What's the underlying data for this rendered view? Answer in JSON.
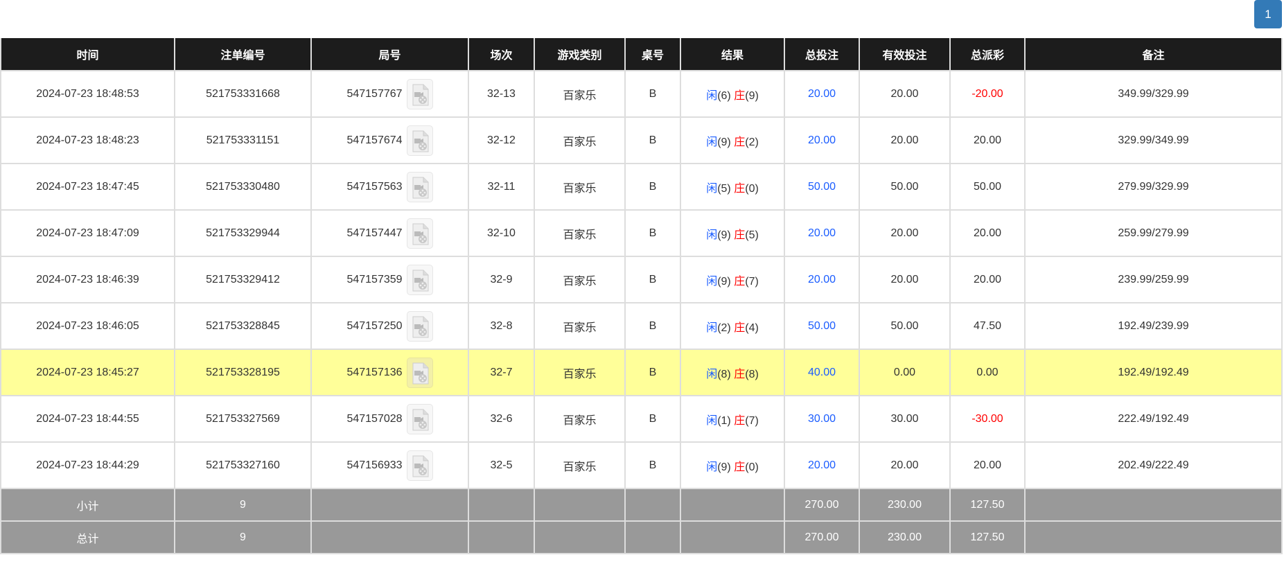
{
  "pagination": {
    "current": "1"
  },
  "columns": [
    "时间",
    "注单编号",
    "局号",
    "场次",
    "游戏类别",
    "桌号",
    "结果",
    "总投注",
    "有效投注",
    "总派彩",
    "备注"
  ],
  "rows": [
    {
      "time": "2024-07-23 18:48:53",
      "bet_no": "521753331668",
      "round": "547157767",
      "session": "32-13",
      "game": "百家乐",
      "table": "B",
      "player_label": "闲",
      "player": "(6)",
      "banker_label": "庄",
      "banker": "(9)",
      "total_bet": "20.00",
      "valid_bet": "20.00",
      "payout": "-20.00",
      "payout_negative": true,
      "note": "349.99/329.99"
    },
    {
      "time": "2024-07-23 18:48:23",
      "bet_no": "521753331151",
      "round": "547157674",
      "session": "32-12",
      "game": "百家乐",
      "table": "B",
      "player_label": "闲",
      "player": "(9)",
      "banker_label": "庄",
      "banker": "(2)",
      "total_bet": "20.00",
      "valid_bet": "20.00",
      "payout": "20.00",
      "payout_negative": false,
      "note": "329.99/349.99"
    },
    {
      "time": "2024-07-23 18:47:45",
      "bet_no": "521753330480",
      "round": "547157563",
      "session": "32-11",
      "game": "百家乐",
      "table": "B",
      "player_label": "闲",
      "player": "(5)",
      "banker_label": "庄",
      "banker": "(0)",
      "total_bet": "50.00",
      "valid_bet": "50.00",
      "payout": "50.00",
      "payout_negative": false,
      "note": "279.99/329.99"
    },
    {
      "time": "2024-07-23 18:47:09",
      "bet_no": "521753329944",
      "round": "547157447",
      "session": "32-10",
      "game": "百家乐",
      "table": "B",
      "player_label": "闲",
      "player": "(9)",
      "banker_label": "庄",
      "banker": "(5)",
      "total_bet": "20.00",
      "valid_bet": "20.00",
      "payout": "20.00",
      "payout_negative": false,
      "note": "259.99/279.99"
    },
    {
      "time": "2024-07-23 18:46:39",
      "bet_no": "521753329412",
      "round": "547157359",
      "session": "32-9",
      "game": "百家乐",
      "table": "B",
      "player_label": "闲",
      "player": "(9)",
      "banker_label": "庄",
      "banker": "(7)",
      "total_bet": "20.00",
      "valid_bet": "20.00",
      "payout": "20.00",
      "payout_negative": false,
      "note": "239.99/259.99"
    },
    {
      "time": "2024-07-23 18:46:05",
      "bet_no": "521753328845",
      "round": "547157250",
      "session": "32-8",
      "game": "百家乐",
      "table": "B",
      "player_label": "闲",
      "player": "(2)",
      "banker_label": "庄",
      "banker": "(4)",
      "total_bet": "50.00",
      "valid_bet": "50.00",
      "payout": "47.50",
      "payout_negative": false,
      "note": "192.49/239.99"
    },
    {
      "time": "2024-07-23 18:45:27",
      "bet_no": "521753328195",
      "round": "547157136",
      "session": "32-7",
      "game": "百家乐",
      "table": "B",
      "player_label": "闲",
      "player": "(8)",
      "banker_label": "庄",
      "banker": "(8)",
      "total_bet": "40.00",
      "valid_bet": "0.00",
      "payout": "0.00",
      "payout_negative": false,
      "note": "192.49/192.49",
      "highlight": true
    },
    {
      "time": "2024-07-23 18:44:55",
      "bet_no": "521753327569",
      "round": "547157028",
      "session": "32-6",
      "game": "百家乐",
      "table": "B",
      "player_label": "闲",
      "player": "(1)",
      "banker_label": "庄",
      "banker": "(7)",
      "total_bet": "30.00",
      "valid_bet": "30.00",
      "payout": "-30.00",
      "payout_negative": true,
      "note": "222.49/192.49"
    },
    {
      "time": "2024-07-23 18:44:29",
      "bet_no": "521753327160",
      "round": "547156933",
      "session": "32-5",
      "game": "百家乐",
      "table": "B",
      "player_label": "闲",
      "player": "(9)",
      "banker_label": "庄",
      "banker": "(0)",
      "total_bet": "20.00",
      "valid_bet": "20.00",
      "payout": "20.00",
      "payout_negative": false,
      "note": "202.49/222.49"
    }
  ],
  "subtotal": {
    "label": "小计",
    "count": "9",
    "total_bet": "270.00",
    "valid_bet": "230.00",
    "payout": "127.50"
  },
  "total": {
    "label": "总计",
    "count": "9",
    "total_bet": "270.00",
    "valid_bet": "230.00",
    "payout": "127.50"
  },
  "colors": {
    "header_bg": "#1c1c1c",
    "highlight": "#ffff99",
    "summary_bg": "#999999",
    "blue": "#1a5cff",
    "red": "#ff0000",
    "pager": "#337ab7"
  }
}
